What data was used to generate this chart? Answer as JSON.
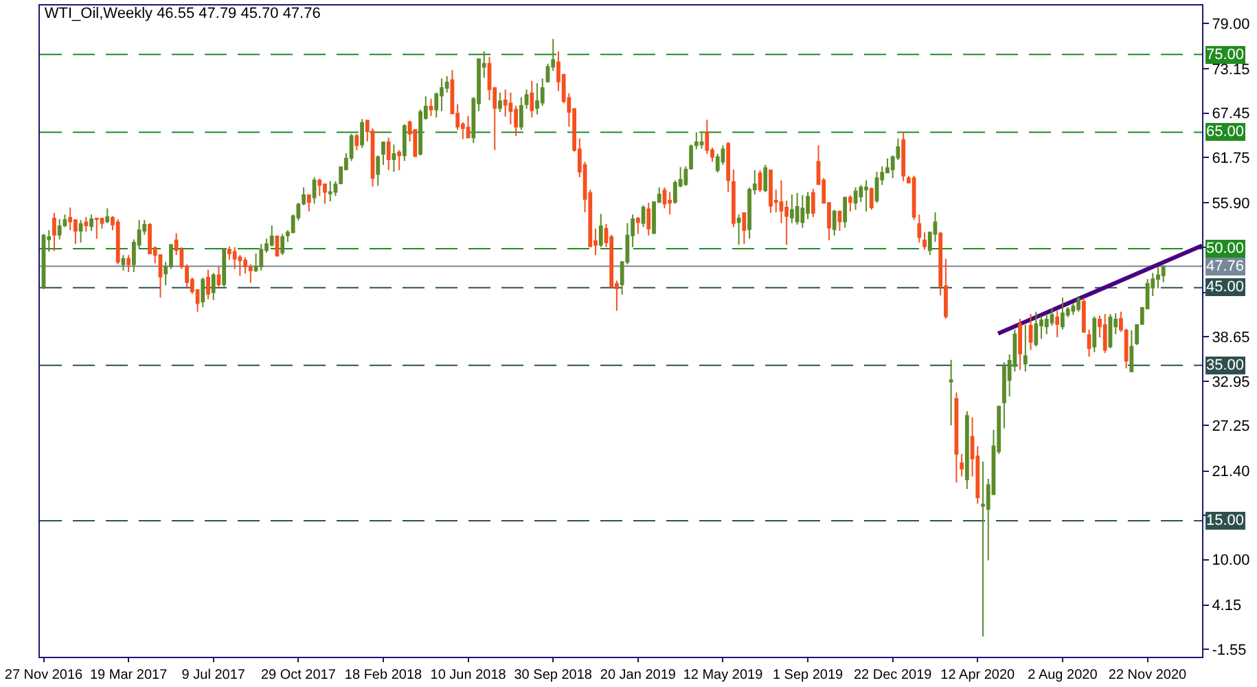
{
  "chart_data": {
    "type": "candlestick",
    "title": "WTI_Oil,Weekly 46.55 47.79 45.70 47.76",
    "x": [
      "2016-11-27",
      "2016-12-04",
      "2016-12-11",
      "2016-12-18",
      "2016-12-25",
      "2017-01-01",
      "2017-01-08",
      "2017-01-15",
      "2017-01-22",
      "2017-01-29",
      "2017-02-05",
      "2017-02-12",
      "2017-02-19",
      "2017-02-26",
      "2017-03-05",
      "2017-03-12",
      "2017-03-19",
      "2017-03-26",
      "2017-04-02",
      "2017-04-09",
      "2017-04-16",
      "2017-04-23",
      "2017-04-30",
      "2017-05-07",
      "2017-05-14",
      "2017-05-21",
      "2017-05-28",
      "2017-06-04",
      "2017-06-11",
      "2017-06-18",
      "2017-06-25",
      "2017-07-02",
      "2017-07-09",
      "2017-07-16",
      "2017-07-23",
      "2017-07-30",
      "2017-08-06",
      "2017-08-13",
      "2017-08-20",
      "2017-08-27",
      "2017-09-03",
      "2017-09-10",
      "2017-09-17",
      "2017-09-24",
      "2017-10-01",
      "2017-10-08",
      "2017-10-15",
      "2017-10-22",
      "2017-10-29",
      "2017-11-05",
      "2017-11-12",
      "2017-11-19",
      "2017-11-26",
      "2017-12-03",
      "2017-12-10",
      "2017-12-17",
      "2017-12-24",
      "2017-12-31",
      "2018-01-07",
      "2018-01-14",
      "2018-01-21",
      "2018-01-28",
      "2018-02-04",
      "2018-02-11",
      "2018-02-18",
      "2018-02-25",
      "2018-03-04",
      "2018-03-11",
      "2018-03-18",
      "2018-03-25",
      "2018-04-01",
      "2018-04-08",
      "2018-04-15",
      "2018-04-22",
      "2018-04-29",
      "2018-05-06",
      "2018-05-13",
      "2018-05-20",
      "2018-05-27",
      "2018-06-03",
      "2018-06-10",
      "2018-06-17",
      "2018-06-24",
      "2018-07-01",
      "2018-07-08",
      "2018-07-15",
      "2018-07-22",
      "2018-07-29",
      "2018-08-05",
      "2018-08-12",
      "2018-08-19",
      "2018-08-26",
      "2018-09-02",
      "2018-09-09",
      "2018-09-16",
      "2018-09-23",
      "2018-09-30",
      "2018-10-07",
      "2018-10-14",
      "2018-10-21",
      "2018-10-28",
      "2018-11-04",
      "2018-11-11",
      "2018-11-18",
      "2018-11-25",
      "2018-12-02",
      "2018-12-09",
      "2018-12-16",
      "2018-12-23",
      "2018-12-30",
      "2019-01-06",
      "2019-01-13",
      "2019-01-20",
      "2019-01-27",
      "2019-02-03",
      "2019-02-10",
      "2019-02-17",
      "2019-02-24",
      "2019-03-03",
      "2019-03-10",
      "2019-03-17",
      "2019-03-24",
      "2019-03-31",
      "2019-04-07",
      "2019-04-14",
      "2019-04-21",
      "2019-04-28",
      "2019-05-05",
      "2019-05-12",
      "2019-05-19",
      "2019-05-26",
      "2019-06-02",
      "2019-06-09",
      "2019-06-16",
      "2019-06-23",
      "2019-06-30",
      "2019-07-07",
      "2019-07-14",
      "2019-07-21",
      "2019-07-28",
      "2019-08-04",
      "2019-08-11",
      "2019-08-18",
      "2019-08-25",
      "2019-09-01",
      "2019-09-08",
      "2019-09-15",
      "2019-09-22",
      "2019-09-29",
      "2019-10-06",
      "2019-10-13",
      "2019-10-20",
      "2019-10-27",
      "2019-11-03",
      "2019-11-10",
      "2019-11-17",
      "2019-11-24",
      "2019-12-01",
      "2019-12-08",
      "2019-12-15",
      "2019-12-22",
      "2019-12-29",
      "2020-01-05",
      "2020-01-12",
      "2020-01-19",
      "2020-01-26",
      "2020-02-02",
      "2020-02-09",
      "2020-02-16",
      "2020-02-23",
      "2020-03-01",
      "2020-03-08",
      "2020-03-15",
      "2020-03-22",
      "2020-03-29",
      "2020-04-05",
      "2020-04-12",
      "2020-04-19",
      "2020-04-26",
      "2020-05-03",
      "2020-05-10",
      "2020-05-17",
      "2020-05-24",
      "2020-05-31",
      "2020-06-07",
      "2020-06-14",
      "2020-06-21",
      "2020-06-28",
      "2020-07-05",
      "2020-07-12",
      "2020-07-19",
      "2020-07-26",
      "2020-08-02",
      "2020-08-09",
      "2020-08-16",
      "2020-08-23",
      "2020-08-30",
      "2020-09-06",
      "2020-09-13",
      "2020-09-20",
      "2020-09-27",
      "2020-10-04",
      "2020-10-11",
      "2020-10-18",
      "2020-10-25",
      "2020-11-01",
      "2020-11-08",
      "2020-11-15",
      "2020-11-22",
      "2020-11-29",
      "2020-12-06",
      "2020-12-13"
    ],
    "ohlc": [
      [
        45.1,
        51.9,
        44.8,
        51.7
      ],
      [
        51.2,
        52.4,
        49.6,
        51.5
      ],
      [
        53.9,
        54.6,
        49.7,
        51.8
      ],
      [
        51.8,
        53.8,
        51.2,
        52.9
      ],
      [
        53.0,
        54.4,
        52.8,
        53.7
      ],
      [
        54.0,
        55.3,
        52.4,
        53.5
      ],
      [
        53.7,
        53.8,
        50.6,
        52.3
      ],
      [
        52.3,
        53.7,
        50.8,
        53.2
      ],
      [
        53.4,
        54.1,
        52.2,
        53.0
      ],
      [
        52.9,
        54.4,
        52.3,
        53.8
      ],
      [
        53.9,
        54.0,
        51.3,
        53.8
      ],
      [
        53.9,
        53.9,
        52.6,
        53.3
      ],
      [
        53.5,
        55.2,
        53.3,
        54.1
      ],
      [
        54.0,
        54.2,
        52.4,
        53.1
      ],
      [
        53.4,
        53.8,
        48.0,
        48.3
      ],
      [
        48.0,
        49.2,
        47.2,
        48.7
      ],
      [
        48.7,
        49.2,
        47.0,
        48.0
      ],
      [
        48.0,
        51.2,
        47.0,
        50.8
      ],
      [
        50.5,
        53.7,
        50.1,
        52.4
      ],
      [
        52.3,
        53.7,
        51.8,
        53.1
      ],
      [
        53.1,
        53.3,
        49.3,
        49.4
      ],
      [
        50.1,
        50.3,
        48.1,
        49.2
      ],
      [
        49.2,
        49.3,
        43.7,
        46.4
      ],
      [
        46.8,
        48.3,
        45.3,
        47.7
      ],
      [
        47.7,
        50.6,
        47.4,
        50.5
      ],
      [
        51.1,
        52.0,
        49.2,
        49.8
      ],
      [
        49.9,
        50.2,
        47.4,
        47.7
      ],
      [
        47.7,
        48.0,
        45.0,
        45.7
      ],
      [
        46.0,
        46.3,
        44.2,
        44.5
      ],
      [
        44.7,
        44.8,
        41.9,
        43.0
      ],
      [
        43.2,
        46.3,
        42.5,
        46.0
      ],
      [
        46.3,
        47.3,
        43.5,
        44.2
      ],
      [
        44.4,
        46.9,
        43.4,
        46.6
      ],
      [
        46.6,
        47.7,
        45.1,
        45.4
      ],
      [
        45.4,
        50.1,
        45.1,
        49.9
      ],
      [
        49.9,
        50.3,
        48.6,
        49.4
      ],
      [
        49.6,
        50.2,
        47.4,
        48.7
      ],
      [
        48.9,
        49.2,
        46.5,
        48.5
      ],
      [
        48.5,
        48.9,
        46.8,
        47.7
      ],
      [
        47.7,
        48.0,
        45.6,
        47.2
      ],
      [
        47.2,
        49.4,
        47.0,
        47.7
      ],
      [
        47.7,
        50.6,
        47.2,
        49.9
      ],
      [
        49.8,
        51.3,
        49.5,
        50.6
      ],
      [
        50.5,
        53.0,
        50.3,
        51.6
      ],
      [
        51.6,
        51.7,
        49.0,
        49.1
      ],
      [
        49.5,
        51.9,
        49.2,
        51.5
      ],
      [
        51.7,
        52.4,
        50.9,
        52.1
      ],
      [
        52.1,
        54.4,
        52.0,
        54.2
      ],
      [
        54.0,
        55.9,
        53.6,
        55.7
      ],
      [
        55.8,
        57.9,
        55.6,
        56.9
      ],
      [
        56.9,
        57.0,
        54.8,
        56.0
      ],
      [
        56.6,
        59.2,
        55.8,
        58.8
      ],
      [
        58.8,
        59.0,
        56.8,
        58.2
      ],
      [
        58.3,
        58.4,
        55.8,
        57.3
      ],
      [
        57.1,
        58.7,
        56.1,
        57.3
      ],
      [
        57.3,
        58.7,
        56.8,
        58.3
      ],
      [
        58.4,
        60.6,
        58.3,
        60.5
      ],
      [
        60.2,
        62.3,
        60.1,
        61.6
      ],
      [
        61.7,
        64.8,
        61.3,
        64.5
      ],
      [
        64.5,
        64.8,
        62.7,
        63.3
      ],
      [
        63.4,
        66.7,
        63.0,
        66.2
      ],
      [
        66.5,
        66.6,
        63.8,
        65.1
      ],
      [
        65.1,
        65.5,
        58.0,
        59.1
      ],
      [
        59.6,
        62.0,
        58.1,
        61.8
      ],
      [
        62.2,
        63.8,
        60.8,
        63.7
      ],
      [
        63.7,
        64.3,
        60.1,
        61.5
      ],
      [
        61.5,
        63.4,
        59.9,
        62.2
      ],
      [
        62.4,
        62.7,
        60.1,
        62.0
      ],
      [
        62.0,
        66.0,
        61.3,
        65.8
      ],
      [
        66.3,
        66.5,
        63.8,
        64.8
      ],
      [
        65.3,
        65.4,
        61.8,
        61.9
      ],
      [
        62.2,
        67.9,
        62.0,
        67.6
      ],
      [
        66.8,
        69.6,
        66.6,
        68.3
      ],
      [
        68.3,
        69.3,
        67.1,
        67.9
      ],
      [
        67.9,
        70.1,
        66.9,
        69.9
      ],
      [
        69.7,
        71.9,
        67.7,
        70.7
      ],
      [
        70.7,
        72.2,
        70.1,
        71.4
      ],
      [
        71.7,
        73.0,
        67.3,
        67.4
      ],
      [
        67.4,
        68.6,
        65.3,
        65.7
      ],
      [
        66.0,
        66.3,
        64.1,
        65.5
      ],
      [
        65.6,
        67.1,
        64.2,
        64.3
      ],
      [
        64.3,
        69.5,
        63.6,
        69.3
      ],
      [
        68.7,
        74.5,
        67.7,
        74.4
      ],
      [
        73.4,
        75.4,
        72.0,
        73.8
      ],
      [
        73.8,
        74.7,
        69.1,
        70.5
      ],
      [
        70.7,
        70.8,
        62.7,
        68.1
      ],
      [
        68.1,
        70.1,
        67.6,
        69.0
      ],
      [
        69.1,
        70.5,
        67.0,
        68.5
      ],
      [
        68.7,
        70.1,
        66.0,
        67.7
      ],
      [
        67.9,
        68.4,
        64.5,
        65.7
      ],
      [
        65.7,
        69.5,
        65.3,
        68.4
      ],
      [
        68.6,
        70.5,
        68.0,
        69.8
      ],
      [
        70.0,
        71.6,
        66.9,
        67.8
      ],
      [
        68.1,
        71.3,
        67.3,
        69.0
      ],
      [
        68.8,
        71.9,
        68.4,
        70.7
      ],
      [
        71.5,
        73.8,
        71.4,
        73.4
      ],
      [
        73.4,
        77.0,
        72.9,
        74.3
      ],
      [
        74.0,
        75.4,
        70.3,
        71.5
      ],
      [
        72.4,
        72.5,
        68.7,
        69.0
      ],
      [
        69.4,
        70.0,
        65.7,
        67.6
      ],
      [
        68.0,
        68.1,
        62.5,
        62.7
      ],
      [
        62.8,
        64.2,
        59.2,
        59.9
      ],
      [
        60.8,
        61.2,
        54.7,
        56.4
      ],
      [
        57.2,
        57.6,
        50.2,
        50.3
      ],
      [
        51.0,
        52.6,
        49.2,
        50.5
      ],
      [
        50.5,
        54.5,
        50.2,
        52.9
      ],
      [
        52.6,
        53.2,
        50.2,
        50.8
      ],
      [
        51.5,
        51.8,
        45.0,
        45.1
      ],
      [
        45.5,
        45.9,
        42.0,
        44.9
      ],
      [
        45.4,
        48.4,
        44.1,
        48.3
      ],
      [
        48.3,
        53.3,
        48.0,
        51.7
      ],
      [
        51.7,
        54.4,
        50.2,
        53.8
      ],
      [
        53.9,
        54.1,
        51.9,
        53.4
      ],
      [
        53.3,
        55.6,
        52.8,
        55.3
      ],
      [
        55.1,
        55.9,
        51.7,
        52.6
      ],
      [
        52.0,
        56.1,
        51.9,
        56.0
      ],
      [
        56.0,
        57.9,
        55.9,
        57.0
      ],
      [
        57.5,
        57.9,
        55.2,
        55.8
      ],
      [
        56.2,
        57.3,
        54.4,
        55.9
      ],
      [
        56.0,
        58.8,
        55.8,
        58.5
      ],
      [
        58.1,
        60.5,
        57.9,
        58.9
      ],
      [
        58.3,
        60.6,
        58.1,
        60.2
      ],
      [
        60.3,
        63.4,
        60.2,
        63.2
      ],
      [
        63.3,
        65.0,
        62.8,
        63.7
      ],
      [
        63.4,
        64.9,
        62.9,
        63.7
      ],
      [
        64.9,
        66.6,
        62.2,
        62.7
      ],
      [
        62.7,
        63.0,
        61.2,
        61.8
      ],
      [
        60.1,
        62.2,
        59.8,
        61.8
      ],
      [
        61.2,
        63.3,
        60.8,
        62.8
      ],
      [
        63.5,
        63.7,
        57.3,
        58.8
      ],
      [
        58.6,
        60.2,
        52.8,
        53.3
      ],
      [
        53.4,
        54.4,
        50.5,
        53.9
      ],
      [
        54.6,
        54.7,
        50.6,
        52.4
      ],
      [
        52.5,
        57.9,
        51.3,
        57.6
      ],
      [
        57.6,
        60.1,
        57.0,
        58.3
      ],
      [
        59.7,
        60.1,
        57.3,
        57.6
      ],
      [
        57.5,
        60.8,
        57.3,
        60.4
      ],
      [
        60.1,
        60.2,
        54.6,
        55.5
      ],
      [
        56.2,
        57.6,
        54.7,
        56.0
      ],
      [
        56.0,
        58.8,
        53.3,
        54.9
      ],
      [
        55.3,
        56.2,
        50.5,
        54.2
      ],
      [
        54.0,
        57.0,
        53.3,
        55.0
      ],
      [
        53.5,
        57.2,
        53.1,
        55.4
      ],
      [
        53.4,
        56.9,
        52.7,
        55.2
      ],
      [
        54.6,
        57.3,
        53.8,
        56.7
      ],
      [
        57.2,
        57.7,
        54.1,
        54.6
      ],
      [
        61.2,
        63.3,
        58.2,
        58.3
      ],
      [
        58.8,
        59.1,
        55.8,
        55.9
      ],
      [
        55.9,
        56.0,
        51.1,
        52.7
      ],
      [
        52.5,
        55.0,
        51.7,
        54.8
      ],
      [
        54.8,
        54.9,
        52.3,
        53.5
      ],
      [
        53.5,
        56.7,
        52.7,
        56.6
      ],
      [
        56.6,
        56.9,
        54.8,
        56.0
      ],
      [
        55.9,
        57.9,
        55.0,
        57.4
      ],
      [
        56.7,
        58.2,
        56.0,
        57.9
      ],
      [
        57.6,
        58.8,
        54.8,
        57.9
      ],
      [
        57.7,
        57.9,
        55.0,
        55.3
      ],
      [
        56.2,
        59.9,
        55.9,
        59.1
      ],
      [
        58.9,
        60.6,
        58.2,
        59.8
      ],
      [
        59.8,
        61.6,
        59.7,
        60.4
      ],
      [
        60.2,
        62.0,
        59.1,
        61.8
      ],
      [
        61.7,
        64.2,
        61.4,
        63.1
      ],
      [
        64.0,
        65.0,
        58.7,
        59.4
      ],
      [
        59.1,
        59.4,
        58.4,
        58.5
      ],
      [
        59.1,
        59.4,
        53.7,
        54.1
      ],
      [
        53.2,
        54.4,
        50.8,
        51.5
      ],
      [
        51.1,
        52.1,
        49.9,
        50.3
      ],
      [
        49.8,
        52.2,
        49.2,
        52.1
      ],
      [
        51.9,
        54.7,
        50.9,
        53.4
      ],
      [
        52.0,
        52.1,
        44.0,
        45.2
      ],
      [
        45.2,
        48.7,
        41.0,
        41.3
      ],
      [
        32.9,
        35.7,
        27.3,
        33.1
      ],
      [
        30.7,
        31.5,
        19.9,
        23.6
      ],
      [
        22.4,
        23.6,
        20.7,
        21.7
      ],
      [
        20.3,
        29.1,
        19.1,
        28.5
      ],
      [
        25.8,
        28.3,
        20.7,
        23.0
      ],
      [
        23.3,
        24.6,
        17.2,
        18.0
      ],
      [
        16.9,
        22.6,
        0.1,
        17.1
      ],
      [
        16.5,
        20.4,
        9.9,
        19.6
      ],
      [
        18.4,
        26.7,
        18.3,
        24.6
      ],
      [
        23.9,
        29.8,
        23.6,
        29.7
      ],
      [
        30.2,
        35.4,
        26.9,
        34.9
      ],
      [
        33.1,
        36.4,
        31.0,
        35.6
      ],
      [
        34.9,
        39.6,
        34.2,
        39.0
      ],
      [
        40.3,
        41.0,
        34.4,
        36.5
      ],
      [
        35.2,
        40.2,
        34.2,
        36.2
      ],
      [
        40.1,
        41.6,
        37.0,
        38.0
      ],
      [
        37.7,
        41.9,
        37.4,
        40.3
      ],
      [
        40.1,
        41.3,
        38.4,
        40.8
      ],
      [
        40.0,
        41.6,
        39.0,
        40.9
      ],
      [
        40.5,
        42.4,
        40.1,
        41.5
      ],
      [
        41.2,
        42.0,
        38.6,
        40.3
      ],
      [
        40.0,
        43.7,
        39.6,
        41.7
      ],
      [
        41.5,
        42.5,
        41.2,
        42.2
      ],
      [
        42.0,
        43.0,
        41.5,
        42.6
      ],
      [
        42.2,
        43.9,
        41.9,
        43.5
      ],
      [
        43.2,
        43.7,
        39.2,
        39.3
      ],
      [
        38.9,
        39.6,
        36.1,
        37.2
      ],
      [
        37.4,
        41.3,
        36.7,
        41.0
      ],
      [
        40.9,
        41.4,
        38.6,
        40.0
      ],
      [
        40.2,
        41.6,
        36.6,
        37.0
      ],
      [
        37.4,
        41.6,
        37.2,
        41.2
      ],
      [
        40.0,
        41.7,
        39.0,
        40.9
      ],
      [
        41.0,
        41.9,
        39.3,
        39.6
      ],
      [
        39.5,
        39.7,
        34.6,
        35.6
      ],
      [
        34.2,
        39.5,
        34.1,
        37.4
      ],
      [
        37.8,
        40.3,
        37.6,
        40.2
      ],
      [
        40.3,
        42.5,
        40.2,
        42.4
      ],
      [
        42.3,
        46.1,
        42.2,
        45.5
      ],
      [
        45.0,
        46.9,
        43.9,
        46.1
      ],
      [
        46.1,
        47.7,
        44.9,
        46.6
      ],
      [
        46.55,
        47.79,
        45.7,
        47.76
      ]
    ],
    "colors": [
      "#5b8c2a",
      "#5b8c2a",
      "#f4511e",
      "#5b8c2a",
      "#5b8c2a",
      "#f4511e",
      "#f4511e",
      "#5b8c2a",
      "#f4511e",
      "#5b8c2a",
      "#f4511e",
      "#f4511e",
      "#5b8c2a",
      "#f4511e",
      "#f4511e",
      "#5b8c2a",
      "#f4511e",
      "#5b8c2a",
      "#5b8c2a",
      "#5b8c2a",
      "#f4511e",
      "#f4511e",
      "#f4511e",
      "#5b8c2a",
      "#5b8c2a",
      "#f4511e",
      "#f4511e",
      "#f4511e",
      "#f4511e",
      "#f4511e",
      "#5b8c2a",
      "#f4511e",
      "#5b8c2a",
      "#f4511e",
      "#5b8c2a",
      "#f4511e",
      "#f4511e",
      "#f4511e",
      "#f4511e",
      "#f4511e",
      "#5b8c2a",
      "#5b8c2a",
      "#5b8c2a",
      "#5b8c2a",
      "#f4511e",
      "#5b8c2a",
      "#5b8c2a",
      "#5b8c2a",
      "#5b8c2a",
      "#5b8c2a",
      "#f4511e",
      "#5b8c2a",
      "#f4511e",
      "#f4511e",
      "#5b8c2a",
      "#5b8c2a",
      "#5b8c2a",
      "#5b8c2a",
      "#5b8c2a",
      "#f4511e",
      "#5b8c2a",
      "#f4511e",
      "#f4511e",
      "#5b8c2a",
      "#5b8c2a",
      "#f4511e",
      "#5b8c2a",
      "#f4511e",
      "#5b8c2a",
      "#f4511e",
      "#f4511e",
      "#5b8c2a",
      "#5b8c2a",
      "#f4511e",
      "#5b8c2a",
      "#5b8c2a",
      "#5b8c2a",
      "#f4511e",
      "#f4511e",
      "#f4511e",
      "#f4511e",
      "#5b8c2a",
      "#5b8c2a",
      "#5b8c2a",
      "#f4511e",
      "#f4511e",
      "#5b8c2a",
      "#f4511e",
      "#f4511e",
      "#f4511e",
      "#5b8c2a",
      "#5b8c2a",
      "#f4511e",
      "#5b8c2a",
      "#5b8c2a",
      "#5b8c2a",
      "#5b8c2a",
      "#f4511e",
      "#f4511e",
      "#f4511e",
      "#f4511e",
      "#f4511e",
      "#f4511e",
      "#f4511e",
      "#f4511e",
      "#5b8c2a",
      "#f4511e",
      "#f4511e",
      "#f4511e",
      "#5b8c2a",
      "#5b8c2a",
      "#5b8c2a",
      "#f4511e",
      "#5b8c2a",
      "#f4511e",
      "#5b8c2a",
      "#5b8c2a",
      "#f4511e",
      "#f4511e",
      "#5b8c2a",
      "#5b8c2a",
      "#5b8c2a",
      "#5b8c2a",
      "#5b8c2a",
      "#5b8c2a",
      "#f4511e",
      "#f4511e",
      "#5b8c2a",
      "#5b8c2a",
      "#f4511e",
      "#f4511e",
      "#5b8c2a",
      "#f4511e",
      "#5b8c2a",
      "#5b8c2a",
      "#f4511e",
      "#5b8c2a",
      "#f4511e",
      "#f4511e",
      "#f4511e",
      "#f4511e",
      "#5b8c2a",
      "#5b8c2a",
      "#5b8c2a",
      "#5b8c2a",
      "#f4511e",
      "#f4511e",
      "#f4511e",
      "#f4511e",
      "#5b8c2a",
      "#f4511e",
      "#5b8c2a",
      "#f4511e",
      "#5b8c2a",
      "#5b8c2a",
      "#5b8c2a",
      "#f4511e",
      "#5b8c2a",
      "#5b8c2a",
      "#5b8c2a",
      "#5b8c2a",
      "#5b8c2a",
      "#f4511e",
      "#f4511e",
      "#f4511e",
      "#f4511e",
      "#f4511e",
      "#5b8c2a",
      "#5b8c2a",
      "#f4511e",
      "#f4511e",
      "#5b8c2a",
      "#f4511e",
      "#f4511e",
      "#5b8c2a",
      "#f4511e",
      "#f4511e",
      "#5b8c2a",
      "#5b8c2a",
      "#5b8c2a",
      "#5b8c2a",
      "#5b8c2a",
      "#5b8c2a",
      "#5b8c2a",
      "#f4511e",
      "#5b8c2a",
      "#f4511e",
      "#5b8c2a",
      "#5b8c2a",
      "#5b8c2a",
      "#5b8c2a",
      "#f4511e",
      "#5b8c2a",
      "#5b8c2a",
      "#5b8c2a",
      "#5b8c2a",
      "#f4511e",
      "#f4511e",
      "#5b8c2a",
      "#f4511e",
      "#f4511e",
      "#5b8c2a",
      "#5b8c2a",
      "#f4511e",
      "#f4511e",
      "#5b8c2a",
      "#5b8c2a",
      "#5b8c2a",
      "#5b8c2a",
      "#5b8c2a",
      "#5b8c2a",
      "#5b8c2a"
    ],
    "series": [
      {
        "type": "line",
        "color": "#4b0082",
        "x": [
          "2020-05-09",
          "2021-02-02"
        ],
        "values": [
          39.1,
          50.4
        ]
      }
    ],
    "ref_lines": [
      {
        "axis": "y",
        "value": 75,
        "label": "75.00",
        "color": "#228b22",
        "line_style": "dashed"
      },
      {
        "axis": "y",
        "value": 65,
        "label": "65.00",
        "color": "#228b22",
        "line_style": "dashed"
      },
      {
        "axis": "y",
        "value": 50,
        "label": "50.00",
        "color": "#228b22",
        "line_style": "dashed"
      },
      {
        "axis": "y",
        "value": 47.76,
        "label": "47.76",
        "color": "#778899",
        "line_style": "solid"
      },
      {
        "axis": "y",
        "value": 45,
        "label": "45.00",
        "color": "#2f4f4f",
        "line_style": "dashed"
      },
      {
        "axis": "y",
        "value": 35,
        "label": "35.00",
        "color": "#2f4f4f",
        "line_style": "dashed"
      },
      {
        "axis": "y",
        "value": 15,
        "label": "15.00",
        "color": "#2f4f4f",
        "line_style": "dashed"
      }
    ],
    "xlim": [
      "2016-11-22",
      "2021-02-02"
    ],
    "xticks": [
      {
        "value": "2016-11-27",
        "label": "27 Nov 2016"
      },
      {
        "value": "2017-03-19",
        "label": "19 Mar 2017"
      },
      {
        "value": "2017-07-09",
        "label": "9 Jul 2017"
      },
      {
        "value": "2017-10-29",
        "label": "29 Oct 2017"
      },
      {
        "value": "2018-02-18",
        "label": "18 Feb 2018"
      },
      {
        "value": "2018-06-10",
        "label": "10 Jun 2018"
      },
      {
        "value": "2018-09-30",
        "label": "30 Sep 2018"
      },
      {
        "value": "2019-01-20",
        "label": "20 Jan 2019"
      },
      {
        "value": "2019-05-12",
        "label": "12 May 2019"
      },
      {
        "value": "2019-09-01",
        "label": "1 Sep 2019"
      },
      {
        "value": "2019-12-22",
        "label": "22 Dec 2019"
      },
      {
        "value": "2020-04-12",
        "label": "12 Apr 2020"
      },
      {
        "value": "2020-08-02",
        "label": "2 Aug 2020"
      },
      {
        "value": "2020-11-22",
        "label": "22 Nov 2020"
      }
    ],
    "ylim": [
      -2.5,
      81.3
    ],
    "yticks": [
      {
        "value": 79,
        "label": "79.00"
      },
      {
        "value": 73.15,
        "label": "73.15"
      },
      {
        "value": 67.45,
        "label": "67.45"
      },
      {
        "value": 61.75,
        "label": "61.75"
      },
      {
        "value": 55.9,
        "label": "55.90"
      },
      {
        "value": 50.2,
        "label": null
      },
      {
        "value": 44.35,
        "label": null
      },
      {
        "value": 38.65,
        "label": "38.65"
      },
      {
        "value": 32.95,
        "label": "32.95"
      },
      {
        "value": 27.25,
        "label": "27.25"
      },
      {
        "value": 21.4,
        "label": "21.40"
      },
      {
        "value": 15.7,
        "label": null
      },
      {
        "value": 10,
        "label": "10.00"
      },
      {
        "value": 4.15,
        "label": "4.15"
      },
      {
        "value": -1.55,
        "label": "-1.55"
      }
    ]
  }
}
